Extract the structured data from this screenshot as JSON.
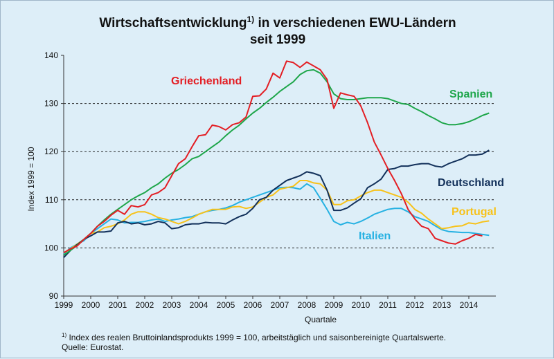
{
  "colors": {
    "background": "#ddeef8",
    "Griechenland": "#e31e24",
    "Spanien": "#1ea64a",
    "Deutschland": "#12305a",
    "Portugal": "#f7c21a",
    "Italien": "#26b1e2"
  },
  "chart_data": {
    "type": "line",
    "title_line1": "Wirtschaftsentwicklung",
    "title_sup": "1)",
    "title_line1_rest": " in verschiedenen EWU-Ländern",
    "title_line2": "seit 1999",
    "xlabel": "Quartale",
    "ylabel": "Index  1999 = 100",
    "ylim": [
      90,
      140
    ],
    "yticks": [
      "90",
      "100",
      "110",
      "120",
      "130",
      "140"
    ],
    "xlim": [
      1999,
      2015
    ],
    "xticks": [
      "1999",
      "2000",
      "2001",
      "2002",
      "2003",
      "2004",
      "2005",
      "2006",
      "2007",
      "2008",
      "2009",
      "2010",
      "2011",
      "2012",
      "2013",
      "2014"
    ],
    "grid": "dashed horizontal at 100, 110, 120, 130",
    "x_start": "1999Q1",
    "series": [
      {
        "name": "Griechenland",
        "values": [
          99.0,
          99.8,
          100.4,
          101.8,
          103.0,
          104.5,
          105.5,
          106.8,
          107.8,
          107.0,
          108.8,
          108.5,
          109.0,
          111.0,
          111.5,
          112.5,
          115.0,
          117.5,
          118.5,
          121.0,
          123.3,
          123.5,
          125.5,
          125.2,
          124.5,
          125.6,
          126.0,
          127.2,
          131.5,
          131.6,
          133.0,
          136.3,
          135.3,
          138.8,
          138.5,
          137.5,
          138.6,
          137.8,
          137.0,
          135.0,
          129.0,
          132.2,
          131.8,
          131.5,
          129.5,
          126.0,
          122.0,
          119.3,
          116.5,
          114.0,
          111.3,
          108.0,
          106.0,
          104.5,
          104.0,
          102.0,
          101.5,
          101.0,
          100.8,
          101.5,
          102.0,
          102.8,
          102.5
        ]
      },
      {
        "name": "Spanien",
        "values": [
          98.5,
          99.5,
          100.5,
          101.8,
          103.0,
          104.5,
          105.8,
          107.0,
          108.0,
          109.0,
          110.0,
          110.8,
          111.5,
          112.5,
          113.3,
          114.5,
          115.5,
          116.3,
          117.3,
          118.5,
          119.0,
          120.0,
          121.0,
          122.0,
          123.3,
          124.5,
          125.5,
          126.8,
          128.0,
          129.0,
          130.2,
          131.3,
          132.5,
          133.5,
          134.5,
          136.0,
          136.8,
          137.0,
          136.3,
          134.5,
          132.0,
          131.0,
          130.8,
          130.8,
          131.0,
          131.2,
          131.2,
          131.2,
          131.0,
          130.5,
          130.0,
          129.8,
          129.0,
          128.3,
          127.5,
          126.8,
          126.0,
          125.6,
          125.6,
          125.8,
          126.2,
          126.8,
          127.5,
          128.0
        ]
      },
      {
        "name": "Deutschland",
        "values": [
          98.0,
          99.5,
          100.7,
          101.8,
          102.5,
          103.3,
          103.3,
          103.5,
          105.2,
          105.5,
          105.0,
          105.2,
          104.8,
          105.0,
          105.5,
          105.2,
          104.0,
          104.2,
          104.8,
          105.0,
          105.0,
          105.3,
          105.2,
          105.2,
          105.0,
          105.8,
          106.5,
          107.0,
          108.2,
          110.0,
          110.5,
          112.0,
          113.0,
          114.0,
          114.5,
          115.0,
          115.8,
          115.5,
          115.0,
          112.0,
          107.8,
          107.8,
          108.3,
          109.3,
          110.2,
          112.5,
          113.3,
          114.3,
          116.3,
          116.5,
          117.0,
          117.0,
          117.3,
          117.5,
          117.5,
          117.0,
          116.8,
          117.5,
          118.0,
          118.5,
          119.3,
          119.3,
          119.5,
          120.3
        ]
      },
      {
        "name": "Portugal",
        "values": [
          99.0,
          99.8,
          100.8,
          101.8,
          103.0,
          103.3,
          104.2,
          104.5,
          105.0,
          105.8,
          107.0,
          107.5,
          107.5,
          107.0,
          106.3,
          106.0,
          105.5,
          105.0,
          105.5,
          106.2,
          107.0,
          107.5,
          108.0,
          108.0,
          108.0,
          108.5,
          108.6,
          108.2,
          108.5,
          109.5,
          110.5,
          111.0,
          112.2,
          112.5,
          112.8,
          114.0,
          114.0,
          113.5,
          113.3,
          112.0,
          109.0,
          109.0,
          109.8,
          110.0,
          110.8,
          111.5,
          112.0,
          112.0,
          111.5,
          111.0,
          110.5,
          109.5,
          108.0,
          107.2,
          106.0,
          105.0,
          104.0,
          104.2,
          104.5,
          104.6,
          105.2,
          105.0,
          105.4,
          105.6
        ]
      },
      {
        "name": "Italien",
        "values": [
          98.8,
          100.0,
          100.8,
          101.5,
          103.0,
          104.0,
          105.0,
          106.0,
          105.8,
          105.2,
          105.3,
          105.3,
          105.5,
          105.8,
          106.0,
          105.5,
          105.8,
          106.0,
          106.3,
          106.5,
          107.0,
          107.5,
          107.8,
          108.0,
          108.3,
          108.8,
          109.5,
          110.0,
          110.5,
          111.0,
          111.5,
          112.0,
          112.5,
          112.6,
          112.5,
          112.2,
          113.3,
          112.5,
          110.3,
          108.0,
          105.5,
          104.8,
          105.3,
          105.0,
          105.5,
          106.2,
          107.0,
          107.5,
          108.0,
          108.2,
          108.2,
          107.5,
          106.5,
          106.0,
          105.5,
          104.6,
          103.8,
          103.4,
          103.3,
          103.2,
          103.2,
          103.0,
          102.8,
          102.6
        ]
      }
    ],
    "annotations": [
      "Griechenland",
      "Spanien",
      "Deutschland",
      "Portugal",
      "Italien"
    ]
  },
  "footnote": {
    "marker": "1)",
    "line1": " Index  des realen Bruttoinlandsprodukts  1999 = 100, arbeitstäglich und saisonbereinigte Quartalswerte.",
    "line2": "Quelle:  Eurostat."
  }
}
